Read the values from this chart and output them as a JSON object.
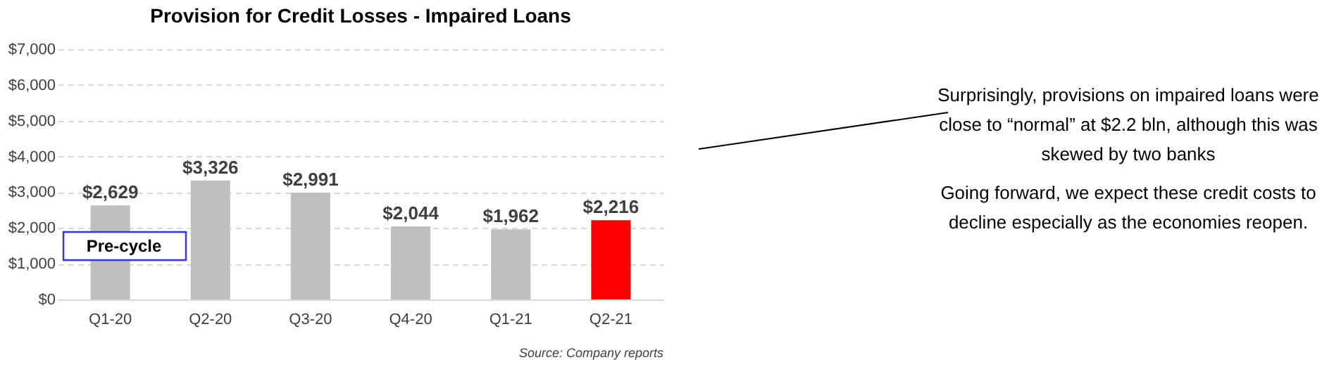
{
  "chart_data": {
    "type": "bar",
    "title": "Provision for Credit Losses - Impaired Loans",
    "categories": [
      "Q1-20",
      "Q2-20",
      "Q3-20",
      "Q4-20",
      "Q1-21",
      "Q2-21"
    ],
    "values": [
      2629,
      3326,
      2991,
      2044,
      1962,
      2216
    ],
    "value_labels": [
      "$2,629",
      "$3,326",
      "$2,991",
      "$2,044",
      "$1,962",
      "$2,216"
    ],
    "colors": [
      "#bfbfbf",
      "#bfbfbf",
      "#bfbfbf",
      "#bfbfbf",
      "#bfbfbf",
      "#ff0000"
    ],
    "ylim": [
      0,
      7000
    ],
    "yticks": [
      {
        "value": 0,
        "label": "$0"
      },
      {
        "value": 1000,
        "label": "$1,000"
      },
      {
        "value": 2000,
        "label": "$2,000"
      },
      {
        "value": 3000,
        "label": "$3,000"
      },
      {
        "value": 4000,
        "label": "$4,000"
      },
      {
        "value": 5000,
        "label": "$5,000"
      },
      {
        "value": 6000,
        "label": "$6,000"
      },
      {
        "value": 7000,
        "label": "$7,000"
      }
    ],
    "grid": "y",
    "annotations": [
      "Pre-cycle",
      "Surprisingly, provisions on impaired loans were close to “normal” at $2.2 bln, although this was skewed by two banks",
      "Going forward, we expect these credit costs to decline especially as the economies reopen.",
      "Source: Company reports"
    ]
  }
}
